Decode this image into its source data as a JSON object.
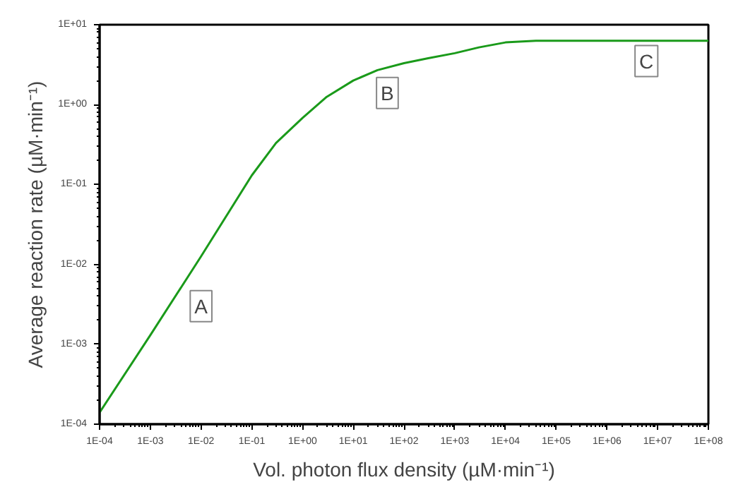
{
  "chart_data": {
    "type": "line",
    "xlabel": "Vol. photon flux density (µM·min⁻¹)",
    "ylabel": "Average reaction rate (µM·min⁻¹)",
    "log": "xy",
    "grid": false,
    "marker": "none",
    "line_style": "solid",
    "x": [
      0.0001,
      0.001,
      0.01,
      0.1,
      0.3,
      1,
      3,
      10,
      30,
      100,
      300,
      1000,
      3000,
      10000,
      40000,
      100000,
      1000000,
      10000000,
      100000000
    ],
    "series": [
      {
        "color": "#1a9a1a",
        "values": [
          0.00014,
          0.0013,
          0.0126,
          0.13,
          0.33,
          0.68,
          1.25,
          2.0,
          2.7,
          3.3,
          3.8,
          4.4,
          5.2,
          6.0,
          6.3,
          6.3,
          6.3,
          6.3,
          6.3
        ]
      }
    ],
    "xlim": [
      0.0001,
      100000000
    ],
    "ylim": [
      0.0001,
      10
    ],
    "xticks": [
      {
        "value": 0.0001,
        "label": "1E-04"
      },
      {
        "value": 0.001,
        "label": "1E-03"
      },
      {
        "value": 0.01,
        "label": "1E-02"
      },
      {
        "value": 0.1,
        "label": "1E-01"
      },
      {
        "value": 1,
        "label": "1E+00"
      },
      {
        "value": 10,
        "label": "1E+01"
      },
      {
        "value": 100,
        "label": "1E+02"
      },
      {
        "value": 1000,
        "label": "1E+03"
      },
      {
        "value": 10000,
        "label": "1E+04"
      },
      {
        "value": 100000,
        "label": "1E+05"
      },
      {
        "value": 1000000,
        "label": "1E+06"
      },
      {
        "value": 10000000,
        "label": "1E+07"
      },
      {
        "value": 100000000,
        "label": "1E+08"
      }
    ],
    "yticks": [
      {
        "value": 0.0001,
        "label": "1E-04"
      },
      {
        "value": 0.001,
        "label": "1E-03"
      },
      {
        "value": 0.01,
        "label": "1E-02"
      },
      {
        "value": 0.1,
        "label": "1E-01"
      },
      {
        "value": 1,
        "label": "1E+00"
      },
      {
        "value": 10,
        "label": "1E+01"
      }
    ],
    "annotations": [
      {
        "text": "A",
        "x": 0.01,
        "y": 0.003
      },
      {
        "text": "B",
        "x": 47,
        "y": 1.4
      },
      {
        "text": "C",
        "x": 6000000,
        "y": 3.5
      }
    ]
  }
}
